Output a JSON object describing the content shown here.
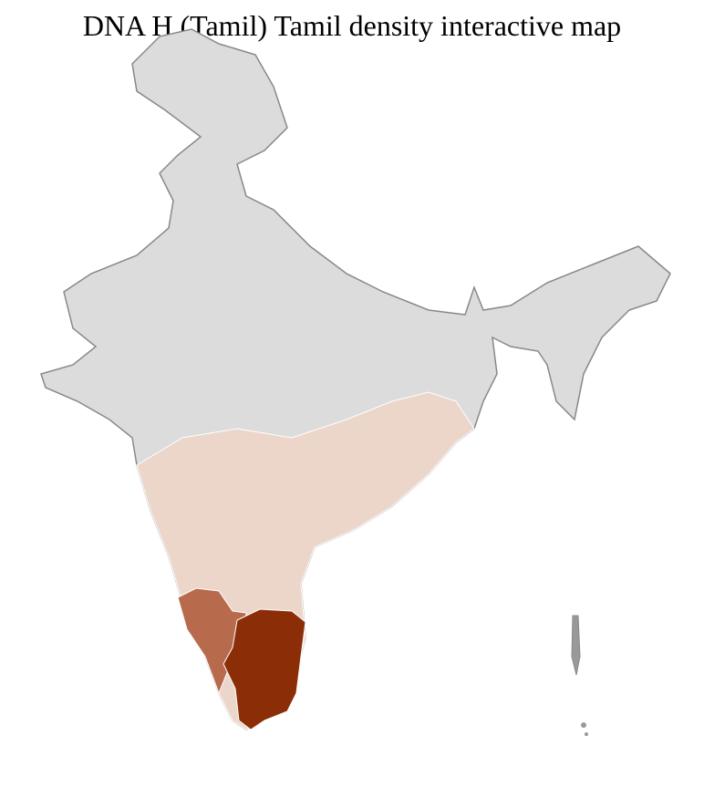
{
  "title": "DNA H (Tamil) Tamil density interactive map",
  "map": {
    "region": "India districts",
    "colors": {
      "no_data_or_low": "#dcdcdc",
      "low": "#ecd6ca",
      "medium": "#b86a4c",
      "high": "#8b2e08",
      "district_border": "#ffffff",
      "state_border": "#888888"
    },
    "highlighted_regions": [
      {
        "name": "Tamil Nadu",
        "level": "high"
      },
      {
        "name": "South Karnataka",
        "level": "medium"
      },
      {
        "name": "Southern peninsula",
        "level": "low"
      }
    ]
  }
}
